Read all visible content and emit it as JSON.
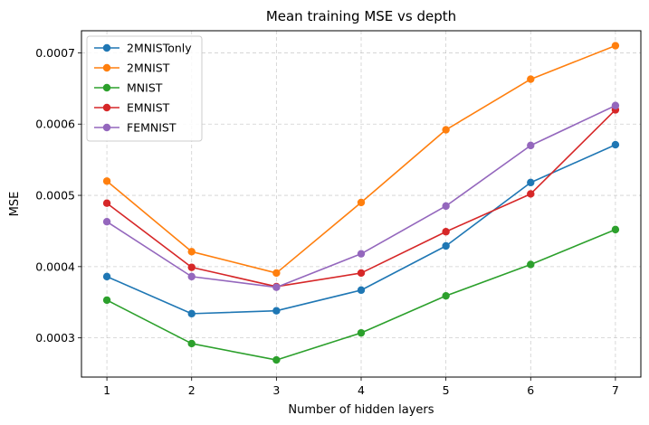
{
  "chart_data": {
    "type": "line",
    "title": "Mean training MSE vs depth",
    "xlabel": "Number of hidden layers",
    "ylabel": "MSE",
    "x": [
      1,
      2,
      3,
      4,
      5,
      6,
      7
    ],
    "xlim": [
      0.7,
      7.3
    ],
    "ylim": [
      0.000245,
      0.000731
    ],
    "xticks": [
      1,
      2,
      3,
      4,
      5,
      6,
      7
    ],
    "yticks": [
      0.0003,
      0.0004,
      0.0005,
      0.0006,
      0.0007
    ],
    "ytick_labels": [
      "0.0003",
      "0.0004",
      "0.0005",
      "0.0006",
      "0.0007"
    ],
    "grid": true,
    "legend_position": "top-left",
    "series": [
      {
        "name": "2MNISTonly",
        "color": "#1f77b4",
        "values": [
          0.000386,
          0.000334,
          0.000338,
          0.000367,
          0.000429,
          0.000518,
          0.000571
        ]
      },
      {
        "name": "2MNIST",
        "color": "#ff7f0e",
        "values": [
          0.00052,
          0.000421,
          0.000391,
          0.00049,
          0.000592,
          0.000663,
          0.00071
        ]
      },
      {
        "name": "MNIST",
        "color": "#2ca02c",
        "values": [
          0.000353,
          0.000292,
          0.000269,
          0.000307,
          0.000359,
          0.000403,
          0.000452
        ]
      },
      {
        "name": "EMNIST",
        "color": "#d62728",
        "values": [
          0.000489,
          0.000399,
          0.000372,
          0.000391,
          0.000449,
          0.000502,
          0.00062
        ]
      },
      {
        "name": "FEMNIST",
        "color": "#9467bd",
        "values": [
          0.000463,
          0.000386,
          0.000371,
          0.000418,
          0.000485,
          0.00057,
          0.000626
        ]
      }
    ]
  }
}
